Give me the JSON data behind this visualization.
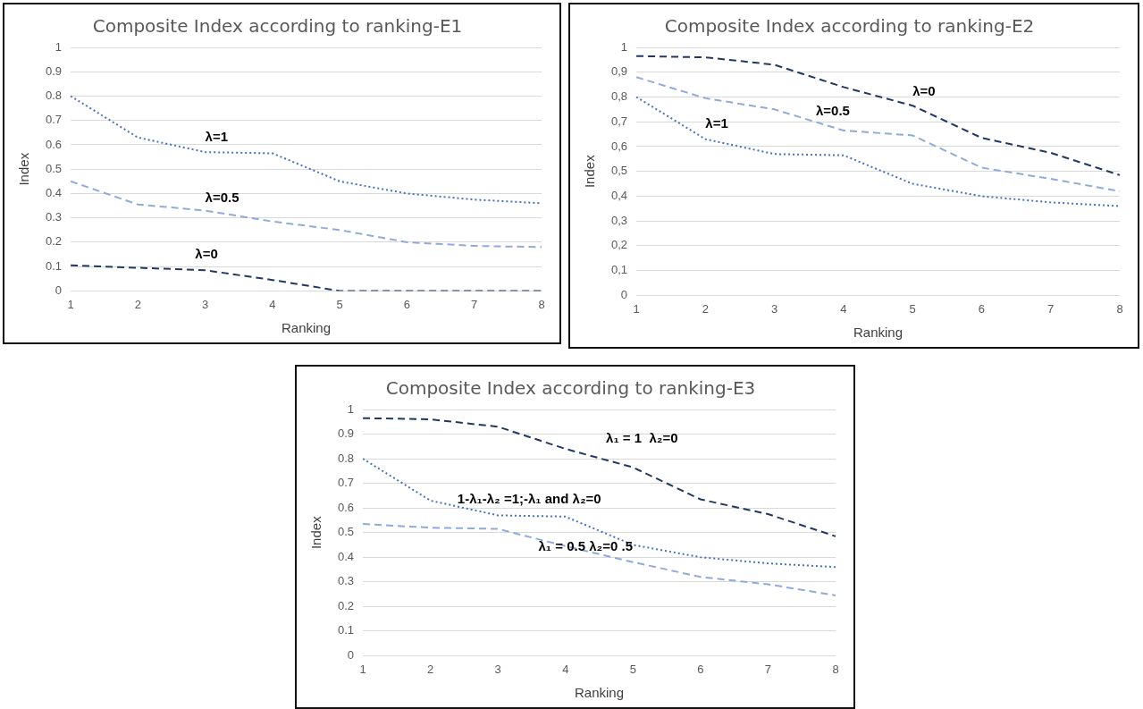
{
  "chart_data": [
    {
      "type": "line",
      "title": "Composite Index according to ranking-E1",
      "xlabel": "Ranking",
      "ylabel": "Index",
      "categories": [
        "1",
        "2",
        "3",
        "4",
        "5",
        "6",
        "7",
        "8"
      ],
      "ylim": [
        0,
        1
      ],
      "yticks": [
        0,
        0.1,
        0.2,
        0.3,
        0.4,
        0.5,
        0.6,
        0.7,
        0.8,
        0.9,
        1
      ],
      "grid": "y",
      "legend": false,
      "marker": "none",
      "series": [
        {
          "name": "λ=1",
          "color": "#4472c4",
          "line_style": "dotted",
          "values": [
            0.8,
            0.63,
            0.57,
            0.565,
            0.45,
            0.4,
            0.375,
            0.36
          ]
        },
        {
          "name": "λ=0.5",
          "color": "#8faadc",
          "line_style": "dashed",
          "values": [
            0.45,
            0.355,
            0.33,
            0.285,
            0.25,
            0.2,
            0.185,
            0.18
          ]
        },
        {
          "name": "λ=0",
          "color": "#203864",
          "line_style": "dashed",
          "values": [
            0.105,
            0.095,
            0.085,
            0.045,
            0,
            0,
            0,
            0
          ]
        }
      ]
    },
    {
      "type": "line",
      "title": "Composite Index according to ranking-E2",
      "xlabel": "Ranking",
      "ylabel": "Index",
      "categories": [
        "1",
        "2",
        "3",
        "4",
        "5",
        "6",
        "7",
        "8"
      ],
      "ylim": [
        0,
        1
      ],
      "yticks": [
        0,
        {
          "value": 0.1,
          "label": "0,1"
        },
        {
          "value": 0.2,
          "label": "0,2"
        },
        {
          "value": 0.3,
          "label": "0,3"
        },
        {
          "value": 0.4,
          "label": "0,4"
        },
        {
          "value": 0.5,
          "label": "0,5"
        },
        {
          "value": 0.6,
          "label": "0,6"
        },
        {
          "value": 0.7,
          "label": "0,7"
        },
        {
          "value": 0.8,
          "label": "0,8"
        },
        {
          "value": 0.9,
          "label": "0,9"
        },
        1
      ],
      "grid": "y",
      "legend": false,
      "marker": "none",
      "series": [
        {
          "name": "λ=0",
          "color": "#203864",
          "line_style": "dashed",
          "values": [
            0.965,
            0.96,
            0.93,
            0.84,
            0.765,
            0.635,
            0.575,
            0.485
          ]
        },
        {
          "name": "λ=0.5",
          "color": "#8faadc",
          "line_style": "dashed",
          "values": [
            0.88,
            0.795,
            0.75,
            0.665,
            0.645,
            0.515,
            0.47,
            0.42
          ]
        },
        {
          "name": "λ=1",
          "color": "#4472c4",
          "line_style": "dotted",
          "values": [
            0.8,
            0.63,
            0.57,
            0.565,
            0.45,
            0.4,
            0.375,
            0.36
          ]
        }
      ]
    },
    {
      "type": "line",
      "title": "Composite Index according to ranking-E3",
      "xlabel": "Ranking",
      "ylabel": "Index",
      "categories": [
        "1",
        "2",
        "3",
        "4",
        "5",
        "6",
        "7",
        "8"
      ],
      "ylim": [
        0,
        1
      ],
      "yticks": [
        0,
        0.1,
        0.2,
        0.3,
        0.4,
        0.5,
        0.6,
        0.7,
        0.8,
        0.9,
        1
      ],
      "grid": "y",
      "legend": false,
      "marker": "none",
      "series": [
        {
          "name": "λ₁ = 1  λ₂=0",
          "color": "#203864",
          "line_style": "dashed",
          "values": [
            0.965,
            0.96,
            0.93,
            0.84,
            0.765,
            0.635,
            0.575,
            0.485
          ]
        },
        {
          "name": "1-λ₁-λ₂ =1;-λ₁ and λ₂=0",
          "color": "#4472c4",
          "line_style": "dotted",
          "values": [
            0.8,
            0.63,
            0.57,
            0.565,
            0.45,
            0.4,
            0.375,
            0.36
          ]
        },
        {
          "name": "λ₁ = 0.5 λ₂=0 .5",
          "color": "#8faadc",
          "line_style": "dashed",
          "values": [
            0.535,
            0.52,
            0.515,
            0.445,
            0.38,
            0.32,
            0.29,
            0.245
          ]
        }
      ]
    }
  ]
}
